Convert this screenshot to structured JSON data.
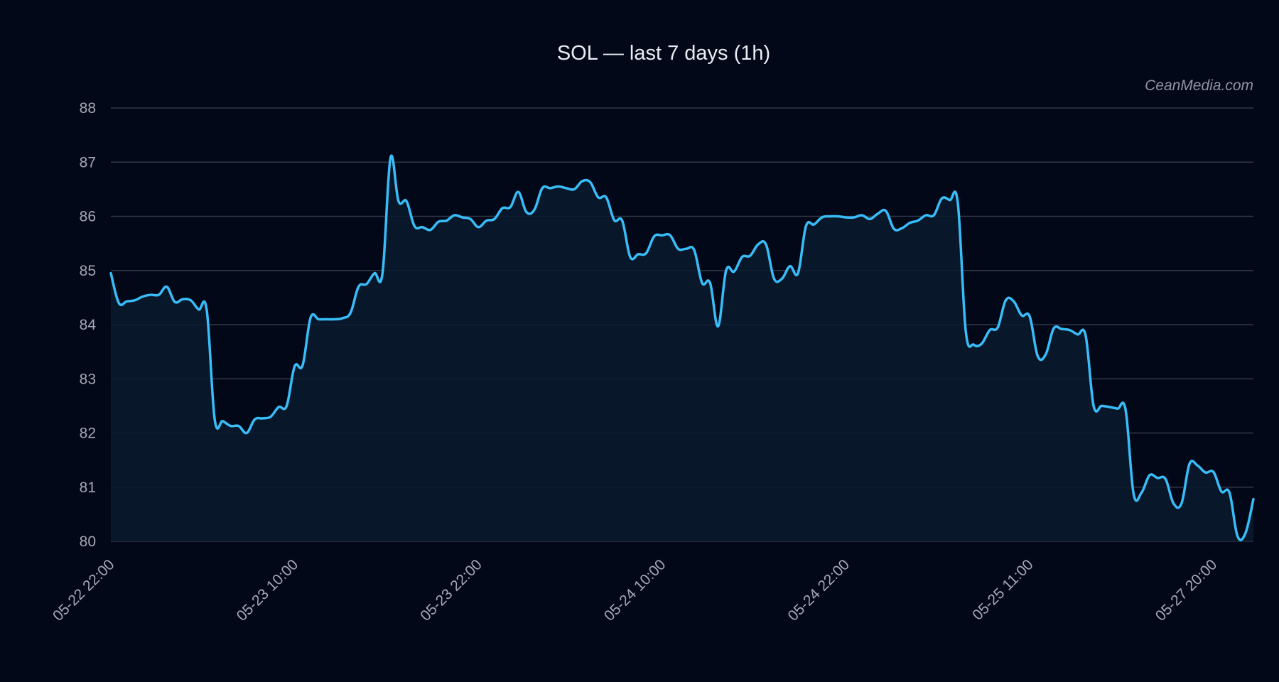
{
  "colors": {
    "background": "#030818",
    "line": "#38bdf8",
    "area": "#0b1a2e",
    "grid": "#2f3747",
    "title": "#e8ecf3",
    "tick": "#a3a9b6",
    "watermark": "#8d94a3"
  },
  "watermark": "CeanMedia.com",
  "chart_data": {
    "type": "area",
    "title": "SOL — last 7 days (1h)",
    "xlabel": "",
    "ylabel": "",
    "ylim": [
      80,
      88
    ],
    "yticks": [
      80,
      81,
      82,
      83,
      84,
      85,
      86,
      87,
      88
    ],
    "grid": true,
    "legend": "none",
    "xticks": [
      {
        "index": 0,
        "label": "05-22 22:00"
      },
      {
        "index": 23,
        "label": "05-23 10:00"
      },
      {
        "index": 46,
        "label": "05-23 22:00"
      },
      {
        "index": 69,
        "label": "05-24 10:00"
      },
      {
        "index": 92,
        "label": "05-24 22:00"
      },
      {
        "index": 115,
        "label": "05-25 11:00"
      },
      {
        "index": 138,
        "label": "05-27 20:00"
      }
    ],
    "series": [
      {
        "values": [
          84.95,
          84.4,
          84.43,
          84.45,
          84.52,
          84.55,
          84.55,
          84.7,
          84.42,
          84.47,
          84.45,
          84.28,
          84.27,
          82.25,
          82.22,
          82.13,
          82.13,
          82.0,
          82.25,
          82.27,
          82.3,
          82.48,
          82.5,
          83.23,
          83.25,
          84.13,
          84.1,
          84.1,
          84.1,
          84.12,
          84.22,
          84.7,
          84.75,
          84.95,
          84.95,
          87.08,
          86.28,
          86.28,
          85.82,
          85.8,
          85.75,
          85.9,
          85.92,
          86.02,
          85.98,
          85.95,
          85.8,
          85.92,
          85.95,
          86.15,
          86.17,
          86.45,
          86.08,
          86.12,
          86.52,
          86.52,
          86.55,
          86.52,
          86.5,
          86.65,
          86.63,
          86.35,
          86.35,
          85.93,
          85.92,
          85.25,
          85.3,
          85.32,
          85.63,
          85.65,
          85.65,
          85.4,
          85.4,
          85.38,
          84.77,
          84.77,
          83.97,
          85.0,
          84.98,
          85.25,
          85.27,
          85.48,
          85.48,
          84.85,
          84.85,
          85.08,
          84.95,
          85.82,
          85.85,
          85.98,
          86.0,
          86.0,
          85.98,
          85.98,
          86.02,
          85.95,
          86.05,
          86.1,
          85.77,
          85.78,
          85.88,
          85.92,
          86.02,
          86.02,
          86.33,
          86.3,
          86.25,
          83.88,
          83.63,
          83.65,
          83.9,
          83.95,
          84.45,
          84.43,
          84.17,
          84.15,
          83.42,
          83.45,
          83.93,
          83.92,
          83.9,
          83.82,
          83.8,
          82.5,
          82.5,
          82.48,
          82.45,
          82.43,
          80.88,
          80.9,
          81.22,
          81.17,
          81.15,
          80.7,
          80.7,
          81.43,
          81.4,
          81.27,
          81.28,
          80.92,
          80.9,
          80.1,
          80.15,
          80.78
        ]
      }
    ]
  }
}
